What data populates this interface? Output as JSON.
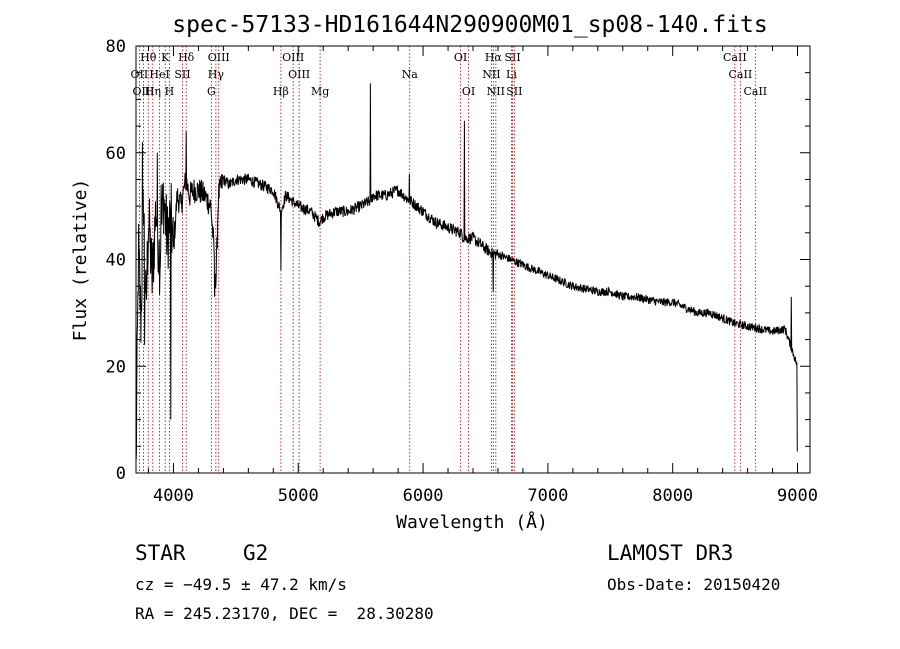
{
  "chart_data": {
    "type": "line",
    "title": "spec-57133-HD161644N290900M01_sp08-140.fits",
    "xlabel": "Wavelength (Å)",
    "ylabel": "Flux (relative)",
    "xlim": [
      3700,
      9100
    ],
    "ylim": [
      0,
      80
    ],
    "x_ticks": [
      4000,
      5000,
      6000,
      7000,
      8000,
      9000
    ],
    "y_ticks": [
      0,
      20,
      40,
      60,
      80
    ],
    "spectrum_anchors": {
      "x": [
        3700,
        3720,
        3740,
        3760,
        3780,
        3800,
        3830,
        3860,
        3890,
        3920,
        3950,
        3980,
        4000,
        4030,
        4060,
        4100,
        4130,
        4160,
        4200,
        4250,
        4300,
        4330,
        4340,
        4360,
        4400,
        4450,
        4500,
        4600,
        4700,
        4800,
        4861,
        4900,
        4950,
        5000,
        5100,
        5170,
        5200,
        5300,
        5400,
        5500,
        5577,
        5600,
        5700,
        5800,
        5890,
        5900,
        6000,
        6100,
        6200,
        6300,
        6330,
        6400,
        6500,
        6563,
        6600,
        6700,
        6800,
        6900,
        7000,
        7100,
        7200,
        7300,
        7400,
        7500,
        7600,
        7700,
        7800,
        7900,
        8000,
        8100,
        8200,
        8300,
        8400,
        8500,
        8600,
        8700,
        8800,
        8900,
        9000
      ],
      "y": [
        0,
        42,
        28,
        52,
        30,
        48,
        36,
        50,
        40,
        52,
        44,
        48,
        42,
        52,
        50,
        55,
        52,
        53,
        53,
        52,
        50,
        40,
        35,
        52,
        55,
        54,
        55,
        55,
        54,
        53,
        49,
        52,
        51,
        50,
        49,
        47,
        48,
        49,
        49,
        50,
        51,
        52,
        52,
        53,
        51,
        51,
        49,
        47,
        46,
        45,
        44,
        44,
        42,
        41,
        41,
        40,
        39,
        38,
        37,
        36,
        35,
        34.5,
        34,
        34,
        33,
        33,
        32.5,
        32,
        32,
        31,
        30,
        30,
        29,
        28,
        27.5,
        27,
        26.5,
        27,
        20
      ]
    },
    "spikes": [
      {
        "x": 5577,
        "y": 73
      },
      {
        "x": 6330,
        "y": 66
      },
      {
        "x": 5890,
        "y": 56
      },
      {
        "x": 4101,
        "y": 64
      },
      {
        "x": 4862,
        "y": 38
      },
      {
        "x": 6563,
        "y": 34
      },
      {
        "x": 4330,
        "y": 33
      },
      {
        "x": 3980,
        "y": 10
      },
      {
        "x": 3750,
        "y": 62
      },
      {
        "x": 3870,
        "y": 60
      },
      {
        "x": 3770,
        "y": 24
      },
      {
        "x": 3900,
        "y": 54
      },
      {
        "x": 8950,
        "y": 33
      },
      {
        "x": 9000,
        "y": 4
      }
    ],
    "line_markers": [
      {
        "label": "Hθ",
        "x": 3798,
        "row": 1
      },
      {
        "label": "K",
        "x": 3934,
        "row": 1
      },
      {
        "label": "Hδ",
        "x": 4102,
        "row": 1
      },
      {
        "label": "OIII",
        "x": 4363,
        "row": 1
      },
      {
        "label": "OIII",
        "x": 4959,
        "row": 1
      },
      {
        "label": "OI",
        "x": 6300,
        "row": 1
      },
      {
        "label": "Hα",
        "x": 6563,
        "row": 1
      },
      {
        "label": "SII",
        "x": 6717,
        "row": 1
      },
      {
        "label": "CaII",
        "x": 8498,
        "row": 1
      },
      {
        "label": "OII",
        "x": 3727,
        "row": 2
      },
      {
        "label": "HeI",
        "x": 3889,
        "row": 2
      },
      {
        "label": "SII",
        "x": 4072,
        "row": 2
      },
      {
        "label": "Hγ",
        "x": 4340,
        "row": 2
      },
      {
        "label": "OIII",
        "x": 5007,
        "row": 2
      },
      {
        "label": "Na",
        "x": 5893,
        "row": 2
      },
      {
        "label": "NII",
        "x": 6548,
        "row": 2
      },
      {
        "label": "Li",
        "x": 6708,
        "row": 2
      },
      {
        "label": "CaII",
        "x": 8542,
        "row": 2
      },
      {
        "label": "OIII",
        "x": 3760,
        "row": 3
      },
      {
        "label": "Hη",
        "x": 3835,
        "row": 3
      },
      {
        "label": "H",
        "x": 3968,
        "row": 3
      },
      {
        "label": "G",
        "x": 4304,
        "row": 3
      },
      {
        "label": "Hβ",
        "x": 4861,
        "row": 3
      },
      {
        "label": "Mg",
        "x": 5175,
        "row": 3
      },
      {
        "label": "OI",
        "x": 6364,
        "row": 3
      },
      {
        "label": "NII",
        "x": 6583,
        "row": 3
      },
      {
        "label": "SII",
        "x": 6731,
        "row": 3
      },
      {
        "label": "CaII",
        "x": 8662,
        "row": 3
      }
    ]
  },
  "info": {
    "object_class": "STAR",
    "subclass": "G2",
    "survey": "LAMOST DR3",
    "cz": "cz = −49.5 ± 47.2 km/s",
    "obs_date": "Obs-Date: 20150420",
    "coords": "RA = 245.23170, DEC =  28.30280"
  }
}
